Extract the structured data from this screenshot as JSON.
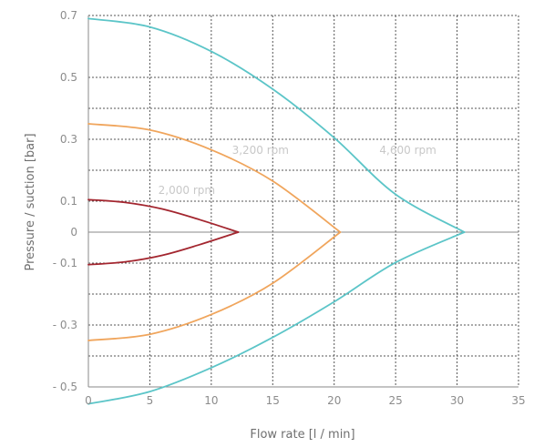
{
  "chart_data": {
    "type": "line",
    "title": "",
    "xlabel": "Flow rate [l / min]",
    "ylabel": "Pressure / suction [bar]",
    "xlim": [
      0,
      35
    ],
    "ylim": [
      -0.5,
      0.7
    ],
    "x_ticks": [
      0,
      5,
      10,
      15,
      20,
      25,
      30,
      35
    ],
    "y_tick_labels": [
      {
        "value": 0.7,
        "label": "0.7"
      },
      {
        "value": 0.5,
        "label": "0.5"
      },
      {
        "value": 0.3,
        "label": "0.3"
      },
      {
        "value": 0.1,
        "label": "0.1"
      },
      {
        "value": 0,
        "label": "0"
      },
      {
        "value": -0.1,
        "label": "- 0.1"
      },
      {
        "value": -0.3,
        "label": "- 0.3"
      },
      {
        "value": -0.5,
        "label": "- 0.5"
      }
    ],
    "y_gridlines": [
      0.7,
      0.5,
      0.4,
      0.3,
      0.2,
      0.1,
      0,
      -0.1,
      -0.2,
      -0.3,
      -0.4,
      -0.5
    ],
    "x_gridlines": [
      5,
      10,
      15,
      20,
      25,
      30,
      35
    ],
    "grid": true,
    "series": [
      {
        "name": "2,000 rpm",
        "color": "#a3262f",
        "segments": [
          {
            "x": [
              0,
              3,
              6,
              9,
              12.2
            ],
            "y": [
              0.105,
              0.096,
              0.075,
              0.041,
              0
            ]
          },
          {
            "x": [
              0,
              3,
              6,
              9,
              12.2
            ],
            "y": [
              -0.105,
              -0.096,
              -0.075,
              -0.041,
              0
            ]
          }
        ],
        "label_at": {
          "x": 8,
          "y": 0.135
        }
      },
      {
        "name": "3,200 rpm",
        "color": "#f0a55c",
        "segments": [
          {
            "x": [
              0,
              5,
              10,
              15,
              20.5
            ],
            "y": [
              0.35,
              0.33,
              0.266,
              0.165,
              0
            ]
          },
          {
            "x": [
              0,
              5,
              10,
              15,
              20.5
            ],
            "y": [
              -0.35,
              -0.33,
              -0.266,
              -0.165,
              0
            ]
          }
        ],
        "label_at": {
          "x": 14,
          "y": 0.265
        }
      },
      {
        "name": "4,600 rpm",
        "color": "#5cc5c8",
        "segments": [
          {
            "x": [
              0,
              5,
              10,
              15,
              20,
              25,
              30.6
            ],
            "y": [
              0.69,
              0.663,
              0.584,
              0.462,
              0.305,
              0.122,
              0
            ]
          },
          {
            "x": [
              0,
              5,
              10,
              15,
              20,
              25,
              30.6
            ],
            "y": [
              -0.555,
              -0.515,
              -0.438,
              -0.34,
              -0.225,
              -0.098,
              0
            ]
          }
        ],
        "label_at": {
          "x": 26,
          "y": 0.265
        }
      }
    ]
  }
}
